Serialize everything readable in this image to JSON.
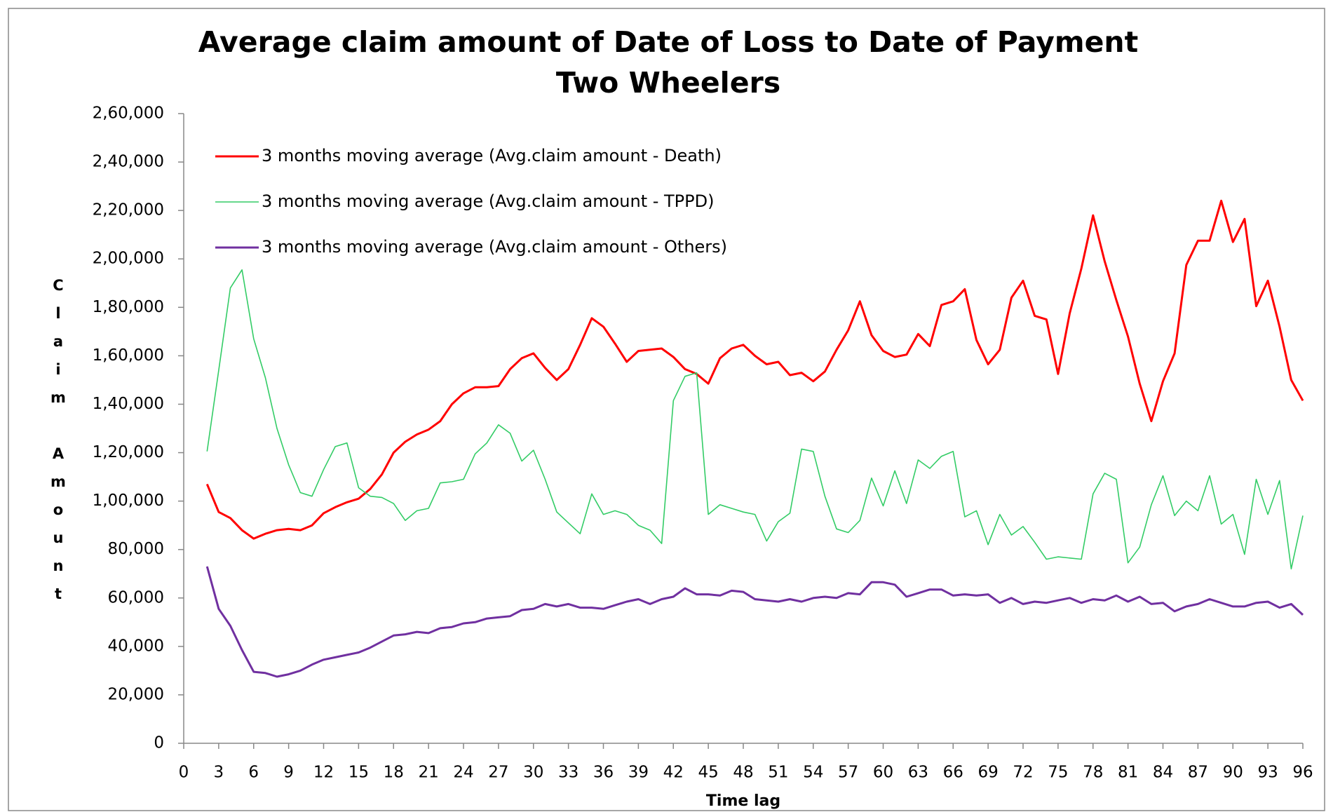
{
  "chart_data": {
    "type": "line",
    "title": "Average claim amount of Date of Loss to Date of Payment",
    "subtitle": "Two Wheelers",
    "x_label": "Time lag",
    "y_label": "Claim Amount",
    "legend": "upper left",
    "xlim": [
      0,
      96
    ],
    "xticks": [
      0,
      3,
      6,
      9,
      12,
      15,
      18,
      21,
      24,
      27,
      30,
      33,
      36,
      39,
      42,
      45,
      48,
      51,
      54,
      57,
      60,
      63,
      66,
      69,
      72,
      75,
      78,
      81,
      84,
      87,
      90,
      93,
      96
    ],
    "ylim": [
      0,
      260000
    ],
    "yticks": [
      0,
      {
        "value": 20000,
        "label": "20,000"
      },
      {
        "value": 40000,
        "label": "40,000"
      },
      {
        "value": 60000,
        "label": "60,000"
      },
      {
        "value": 80000,
        "label": "80,000"
      },
      {
        "value": 100000,
        "label": "1,00,000"
      },
      {
        "value": 120000,
        "label": "1,20,000"
      },
      {
        "value": 140000,
        "label": "1,40,000"
      },
      {
        "value": 160000,
        "label": "1,60,000"
      },
      {
        "value": 180000,
        "label": "1,80,000"
      },
      {
        "value": 200000,
        "label": "2,00,000"
      },
      {
        "value": 220000,
        "label": "2,20,000"
      },
      {
        "value": 240000,
        "label": "2,40,000"
      },
      {
        "value": 260000,
        "label": "2,60,000"
      }
    ],
    "x": [
      2,
      3,
      4,
      5,
      6,
      7,
      8,
      9,
      10,
      11,
      12,
      13,
      14,
      15,
      16,
      17,
      18,
      19,
      20,
      21,
      22,
      23,
      24,
      25,
      26,
      27,
      28,
      29,
      30,
      31,
      32,
      33,
      34,
      35,
      36,
      37,
      38,
      39,
      40,
      41,
      42,
      43,
      44,
      45,
      46,
      47,
      48,
      49,
      50,
      51,
      52,
      53,
      54,
      55,
      56,
      57,
      58,
      59,
      60,
      61,
      62,
      63,
      64,
      65,
      66,
      67,
      68,
      69,
      70,
      71,
      72,
      73,
      74,
      75,
      76,
      77,
      78,
      79,
      80,
      81,
      82,
      83,
      84,
      85,
      86,
      87,
      88,
      89,
      90,
      91,
      92,
      93,
      94,
      95,
      96
    ],
    "series": [
      {
        "name": "3 months moving average (Avg.claim amount - Death)",
        "color": "#ff0000",
        "width": 3,
        "values": [
          107000,
          95500,
          93000,
          88000,
          84500,
          86500,
          88000,
          88500,
          88000,
          90000,
          95000,
          97500,
          99500,
          101000,
          105000,
          111000,
          120000,
          124500,
          127500,
          129500,
          133000,
          140000,
          144500,
          147000,
          147000,
          147500,
          154500,
          159000,
          161000,
          155000,
          150000,
          154500,
          164500,
          175500,
          172000,
          165000,
          157500,
          162000,
          162500,
          163000,
          159500,
          154500,
          152500,
          148500,
          159000,
          163000,
          164500,
          160000,
          156500,
          157500,
          152000,
          153000,
          149500,
          153500,
          162500,
          170500,
          182500,
          168500,
          162000,
          159500,
          160500,
          169000,
          164000,
          181000,
          182500,
          187500,
          166500,
          156500,
          162500,
          184000,
          191000,
          176500,
          175000,
          152500,
          177500,
          196000,
          218000,
          199000,
          183000,
          168000,
          148500,
          133000,
          149500,
          161000,
          197500,
          207500,
          207500,
          224000,
          207000,
          216500,
          180500,
          191000,
          172000,
          150000,
          141500
        ]
      },
      {
        "name": "3 months moving average (Avg.claim amount - TPPD)",
        "color": "#33cc66",
        "width": 1.6,
        "values": [
          120500,
          154000,
          188000,
          195500,
          167000,
          151000,
          130000,
          115000,
          103500,
          102000,
          113000,
          122500,
          124000,
          105500,
          102000,
          101500,
          99000,
          92000,
          96000,
          97000,
          107500,
          108000,
          109000,
          119500,
          124000,
          131500,
          128000,
          116500,
          121000,
          109000,
          95500,
          91000,
          86500,
          103000,
          94500,
          96000,
          94500,
          90000,
          88000,
          82500,
          141500,
          151500,
          153000,
          94500,
          98500,
          97000,
          95500,
          94500,
          83500,
          91500,
          95000,
          121500,
          120500,
          102000,
          88500,
          87000,
          92000,
          109500,
          98000,
          112500,
          99000,
          117000,
          113500,
          118500,
          120500,
          93500,
          96000,
          82000,
          94500,
          86000,
          89500,
          83000,
          76000,
          77000,
          76500,
          76000,
          103000,
          111500,
          109000,
          74500,
          81000,
          98500,
          110500,
          94000,
          100000,
          96000,
          110500,
          90500,
          94500,
          78000,
          109000,
          94500,
          108500,
          72000,
          94000
        ]
      },
      {
        "name": "3 months moving average (Avg.claim amount - Others)",
        "color": "#7030a0",
        "width": 3,
        "values": [
          73000,
          55500,
          48500,
          38500,
          29500,
          29000,
          27500,
          28500,
          30000,
          32500,
          34500,
          35500,
          36500,
          37500,
          39500,
          42000,
          44500,
          45000,
          46000,
          45500,
          47500,
          48000,
          49500,
          50000,
          51500,
          52000,
          52500,
          55000,
          55500,
          57500,
          56500,
          57500,
          56000,
          56000,
          55500,
          57000,
          58500,
          59500,
          57500,
          59500,
          60500,
          64000,
          61500,
          61500,
          61000,
          63000,
          62500,
          59500,
          59000,
          58500,
          59500,
          58500,
          60000,
          60500,
          60000,
          62000,
          61500,
          66500,
          66500,
          65500,
          60500,
          62000,
          63500,
          63500,
          61000,
          61500,
          61000,
          61500,
          58000,
          60000,
          57500,
          58500,
          58000,
          59000,
          60000,
          58000,
          59500,
          59000,
          61000,
          58500,
          60500,
          57500,
          58000,
          54500,
          56500,
          57500,
          59500,
          58000,
          56500,
          56500,
          58000,
          58500,
          56000,
          57500,
          53000
        ]
      }
    ]
  }
}
